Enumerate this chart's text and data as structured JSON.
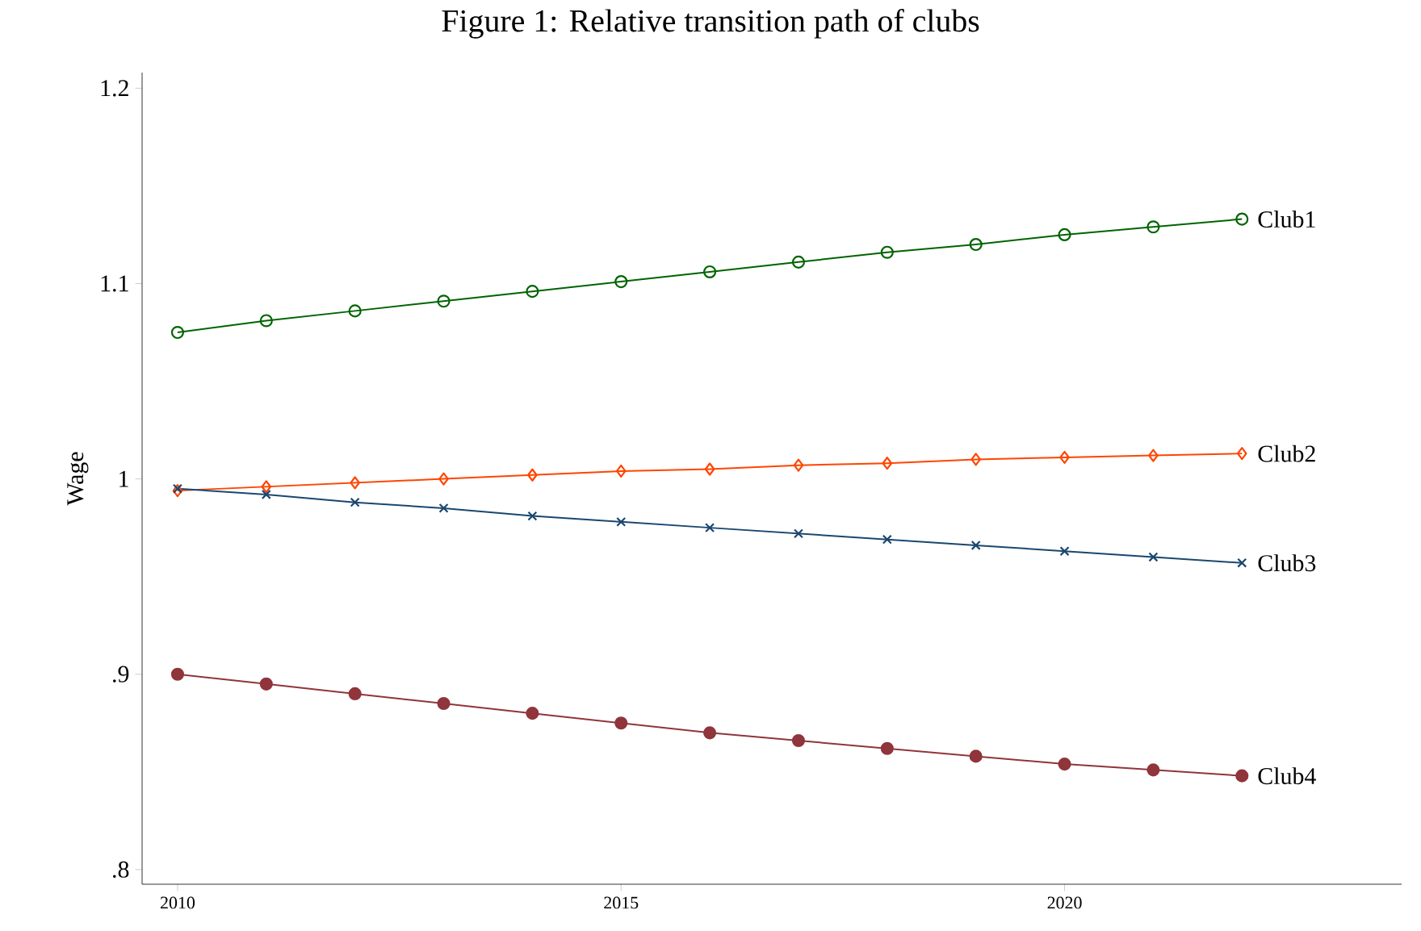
{
  "chart_data": {
    "type": "line",
    "title": "Figure 1: Relative transition path of clubs",
    "ylabel": "Wage",
    "x": [
      2010,
      2011,
      2012,
      2013,
      2014,
      2015,
      2016,
      2017,
      2018,
      2019,
      2020,
      2021,
      2022
    ],
    "series": [
      {
        "name": "Club1",
        "color": "#006400",
        "marker": "circle",
        "values": [
          1.075,
          1.081,
          1.086,
          1.091,
          1.096,
          1.101,
          1.106,
          1.111,
          1.116,
          1.12,
          1.125,
          1.129,
          1.133
        ]
      },
      {
        "name": "Club2",
        "color": "#ff4500",
        "marker": "diamond",
        "values": [
          0.994,
          0.996,
          0.998,
          1.0,
          1.002,
          1.004,
          1.005,
          1.007,
          1.008,
          1.01,
          1.011,
          1.012,
          1.013
        ]
      },
      {
        "name": "Club3",
        "color": "#1a476f",
        "marker": "cross",
        "values": [
          0.995,
          0.992,
          0.988,
          0.985,
          0.981,
          0.978,
          0.975,
          0.972,
          0.969,
          0.966,
          0.963,
          0.96,
          0.957
        ]
      },
      {
        "name": "Club4",
        "color": "#90353b",
        "marker": "filled circle",
        "values": [
          0.9,
          0.895,
          0.89,
          0.885,
          0.88,
          0.875,
          0.87,
          0.866,
          0.862,
          0.858,
          0.854,
          0.851,
          0.848
        ]
      }
    ],
    "xlim": [
      2009.6,
      2023.8
    ],
    "ylim": [
      0.7925,
      1.208
    ],
    "xticks": [
      2010,
      2015,
      2020
    ],
    "yticks": [
      {
        "value": 0.8,
        "label": ".8"
      },
      {
        "value": 0.9,
        "label": ".9"
      },
      {
        "value": 1,
        "label": "1"
      },
      {
        "value": 1.1,
        "label": "1.1"
      },
      {
        "value": 1.2,
        "label": "1.2"
      }
    ]
  }
}
